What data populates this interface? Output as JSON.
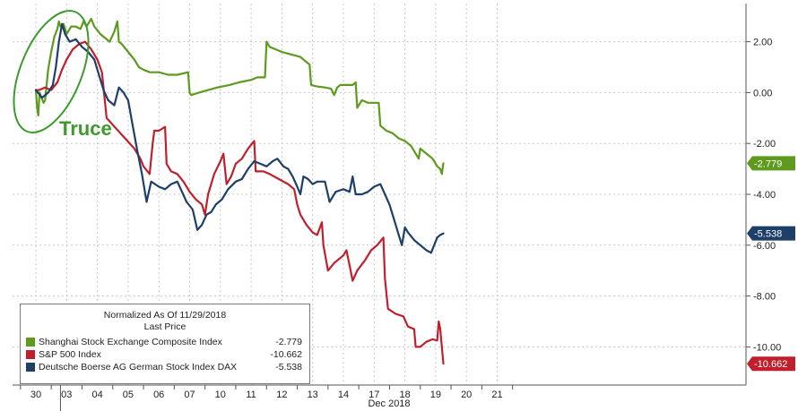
{
  "chart_data": {
    "type": "line",
    "xlabel": "Dec 2018",
    "x_categories": [
      "30",
      "03",
      "04",
      "05",
      "06",
      "07",
      "10",
      "11",
      "12",
      "13",
      "14",
      "17",
      "18",
      "19",
      "20",
      "21"
    ],
    "ylim": [
      -11.5,
      3.5
    ],
    "y_ticks": [
      2,
      0,
      -2,
      -4,
      -6,
      -8,
      -10
    ],
    "y_tick_labels": [
      "2.00",
      "0.00",
      "-2.00",
      "-4.00",
      "-6.00",
      "-8.00",
      "-10.00"
    ],
    "annotation": "Truce",
    "legend": {
      "header_line1": "Normalized As Of 11/29/2018",
      "header_line2": "Last Price"
    },
    "series": [
      {
        "name": "Shanghai Stock Exchange Composite Index",
        "color": "#5e9a1e",
        "last_value": -2.779,
        "last_label": "-2.779",
        "points": [
          [
            0,
            0.1
          ],
          [
            0.04,
            -0.6
          ],
          [
            0.08,
            -0.9
          ],
          [
            0.12,
            0.0
          ],
          [
            0.18,
            -0.2
          ],
          [
            0.25,
            -0.4
          ],
          [
            0.3,
            -0.3
          ],
          [
            0.4,
            0.9
          ],
          [
            0.5,
            1.6
          ],
          [
            0.6,
            2.2
          ],
          [
            0.7,
            2.5
          ],
          [
            0.75,
            2.8
          ],
          [
            0.8,
            2.6
          ],
          [
            0.9,
            2.7
          ],
          [
            1.0,
            2.3
          ],
          [
            1.15,
            2.6
          ],
          [
            1.3,
            2.6
          ],
          [
            1.45,
            2.5
          ],
          [
            1.55,
            2.8
          ],
          [
            1.65,
            2.6
          ],
          [
            1.8,
            2.9
          ],
          [
            1.9,
            2.6
          ],
          [
            2.1,
            2.3
          ],
          [
            2.4,
            2.0
          ],
          [
            2.55,
            2.4
          ],
          [
            2.65,
            2.8
          ],
          [
            2.7,
            2.0
          ],
          [
            2.8,
            1.9
          ],
          [
            3.0,
            1.6
          ],
          [
            3.2,
            1.3
          ],
          [
            3.35,
            1.0
          ],
          [
            3.5,
            0.9
          ],
          [
            3.7,
            0.8
          ],
          [
            4.0,
            0.8
          ],
          [
            4.3,
            0.7
          ],
          [
            4.6,
            0.7
          ],
          [
            4.95,
            0.8
          ],
          [
            5.0,
            0.0
          ],
          [
            5.05,
            -0.1
          ],
          [
            5.3,
            0.0
          ],
          [
            5.6,
            0.1
          ],
          [
            5.9,
            0.2
          ],
          [
            6.3,
            0.3
          ],
          [
            6.6,
            0.4
          ],
          [
            7.0,
            0.5
          ],
          [
            7.2,
            0.6
          ],
          [
            7.45,
            0.6
          ],
          [
            7.5,
            2.0
          ],
          [
            7.6,
            1.8
          ],
          [
            7.8,
            1.7
          ],
          [
            8.0,
            1.6
          ],
          [
            8.3,
            1.5
          ],
          [
            8.6,
            1.4
          ],
          [
            8.9,
            1.1
          ],
          [
            8.95,
            0.3
          ],
          [
            9.1,
            0.25
          ],
          [
            9.4,
            0.2
          ],
          [
            9.6,
            0.15
          ],
          [
            9.7,
            -0.1
          ],
          [
            9.8,
            0.2
          ],
          [
            9.9,
            0.3
          ],
          [
            10.1,
            0.3
          ],
          [
            10.3,
            0.3
          ],
          [
            10.4,
            0.4
          ],
          [
            10.45,
            -0.6
          ],
          [
            10.6,
            -0.3
          ],
          [
            10.8,
            -0.4
          ],
          [
            11.0,
            -0.4
          ],
          [
            11.15,
            -0.4
          ],
          [
            11.2,
            -1.3
          ],
          [
            11.4,
            -1.5
          ],
          [
            11.6,
            -1.6
          ],
          [
            11.8,
            -1.8
          ],
          [
            12.0,
            -1.9
          ],
          [
            12.2,
            -2.1
          ],
          [
            12.35,
            -2.4
          ],
          [
            12.45,
            -2.6
          ],
          [
            12.5,
            -2.2
          ],
          [
            12.7,
            -2.4
          ],
          [
            12.9,
            -2.6
          ],
          [
            13.05,
            -2.9
          ],
          [
            13.15,
            -3.0
          ],
          [
            13.2,
            -3.2
          ],
          [
            13.25,
            -2.779
          ]
        ]
      },
      {
        "name": "S&P 500 Index",
        "color": "#c0202e",
        "last_value": -10.662,
        "last_label": "-10.662",
        "points": [
          [
            0,
            0.1
          ],
          [
            0.1,
            0.1
          ],
          [
            0.3,
            0.2
          ],
          [
            0.5,
            0.1
          ],
          [
            0.7,
            0.4
          ],
          [
            0.85,
            0.9
          ],
          [
            1.0,
            1.3
          ],
          [
            1.2,
            1.7
          ],
          [
            1.4,
            1.9
          ],
          [
            1.6,
            2.0
          ],
          [
            1.8,
            1.7
          ],
          [
            2.0,
            1.3
          ],
          [
            2.15,
            0.8
          ],
          [
            2.3,
            -1.0
          ],
          [
            2.6,
            -1.4
          ],
          [
            2.9,
            -1.8
          ],
          [
            3.2,
            -2.2
          ],
          [
            3.4,
            -2.6
          ],
          [
            3.5,
            -2.9
          ],
          [
            3.7,
            -3.2
          ],
          [
            3.8,
            -2.0
          ],
          [
            3.85,
            -1.5
          ],
          [
            4.0,
            -1.5
          ],
          [
            4.2,
            -1.35
          ],
          [
            4.25,
            -2.8
          ],
          [
            4.4,
            -3.1
          ],
          [
            4.6,
            -3.2
          ],
          [
            4.8,
            -3.5
          ],
          [
            5.0,
            -3.9
          ],
          [
            5.2,
            -4.2
          ],
          [
            5.4,
            -4.4
          ],
          [
            5.5,
            -4.8
          ],
          [
            5.6,
            -4.0
          ],
          [
            5.8,
            -3.2
          ],
          [
            6.0,
            -2.7
          ],
          [
            6.1,
            -2.4
          ],
          [
            6.2,
            -3.6
          ],
          [
            6.35,
            -3.3
          ],
          [
            6.5,
            -2.8
          ],
          [
            6.7,
            -2.6
          ],
          [
            6.9,
            -2.2
          ],
          [
            7.1,
            -1.9
          ],
          [
            7.15,
            -3.1
          ],
          [
            7.4,
            -3.1
          ],
          [
            7.6,
            -3.2
          ],
          [
            7.75,
            -3.3
          ],
          [
            7.9,
            -3.4
          ],
          [
            8.2,
            -3.6
          ],
          [
            8.4,
            -3.8
          ],
          [
            8.5,
            -4.4
          ],
          [
            8.6,
            -4.8
          ],
          [
            8.8,
            -5.2
          ],
          [
            9.0,
            -5.5
          ],
          [
            9.15,
            -5.6
          ],
          [
            9.3,
            -5.1
          ],
          [
            9.35,
            -6.0
          ],
          [
            9.5,
            -7.0
          ],
          [
            9.7,
            -6.7
          ],
          [
            10.0,
            -6.4
          ],
          [
            10.1,
            -6.2
          ],
          [
            10.2,
            -6.8
          ],
          [
            10.3,
            -7.4
          ],
          [
            10.45,
            -7.0
          ],
          [
            10.7,
            -6.6
          ],
          [
            10.9,
            -6.2
          ],
          [
            11.1,
            -6.0
          ],
          [
            11.3,
            -5.7
          ],
          [
            11.35,
            -7.3
          ],
          [
            11.45,
            -8.5
          ],
          [
            11.7,
            -8.7
          ],
          [
            11.95,
            -8.8
          ],
          [
            12.1,
            -9.2
          ],
          [
            12.3,
            -9.3
          ],
          [
            12.35,
            -10.0
          ],
          [
            12.5,
            -10.0
          ],
          [
            12.7,
            -9.8
          ],
          [
            12.9,
            -9.7
          ],
          [
            13.05,
            -9.75
          ],
          [
            13.1,
            -9.0
          ],
          [
            13.15,
            -9.3
          ],
          [
            13.25,
            -10.662
          ]
        ]
      },
      {
        "name": "Deutsche Boerse AG German Stock Index DAX",
        "color": "#1d3f68",
        "last_value": -5.538,
        "last_label": "-5.538",
        "points": [
          [
            0,
            0.1
          ],
          [
            0.2,
            -0.2
          ],
          [
            0.4,
            0.0
          ],
          [
            0.55,
            0.3
          ],
          [
            0.65,
            1.0
          ],
          [
            0.75,
            2.0
          ],
          [
            0.85,
            2.7
          ],
          [
            0.95,
            2.3
          ],
          [
            1.1,
            2.0
          ],
          [
            1.3,
            2.1
          ],
          [
            1.5,
            1.8
          ],
          [
            1.7,
            1.6
          ],
          [
            1.9,
            1.3
          ],
          [
            2.0,
            0.9
          ],
          [
            2.2,
            0.1
          ],
          [
            2.35,
            -0.3
          ],
          [
            2.55,
            -0.5
          ],
          [
            2.7,
            0.2
          ],
          [
            2.85,
            0.0
          ],
          [
            3.0,
            -0.3
          ],
          [
            3.15,
            -1.3
          ],
          [
            3.3,
            -2.3
          ],
          [
            3.45,
            -3.2
          ],
          [
            3.6,
            -4.3
          ],
          [
            3.75,
            -3.5
          ],
          [
            4.0,
            -3.7
          ],
          [
            4.2,
            -3.8
          ],
          [
            4.4,
            -3.6
          ],
          [
            4.6,
            -3.5
          ],
          [
            4.9,
            -4.3
          ],
          [
            5.1,
            -4.6
          ],
          [
            5.25,
            -5.4
          ],
          [
            5.4,
            -5.2
          ],
          [
            5.55,
            -4.8
          ],
          [
            5.7,
            -4.7
          ],
          [
            5.85,
            -4.4
          ],
          [
            6.05,
            -4.2
          ],
          [
            6.25,
            -3.8
          ],
          [
            6.5,
            -3.5
          ],
          [
            6.7,
            -3.4
          ],
          [
            6.9,
            -3.0
          ],
          [
            7.1,
            -2.7
          ],
          [
            7.3,
            -2.8
          ],
          [
            7.5,
            -2.9
          ],
          [
            7.7,
            -2.7
          ],
          [
            7.85,
            -2.6
          ],
          [
            8.05,
            -2.9
          ],
          [
            8.2,
            -3.0
          ],
          [
            8.35,
            -3.3
          ],
          [
            8.5,
            -3.7
          ],
          [
            8.6,
            -4.0
          ],
          [
            8.7,
            -3.3
          ],
          [
            8.85,
            -3.4
          ],
          [
            9.0,
            -3.6
          ],
          [
            9.15,
            -3.5
          ],
          [
            9.4,
            -3.5
          ],
          [
            9.55,
            -4.3
          ],
          [
            9.75,
            -3.9
          ],
          [
            10.0,
            -3.8
          ],
          [
            10.2,
            -3.9
          ],
          [
            10.3,
            -3.3
          ],
          [
            10.4,
            -4.0
          ],
          [
            10.6,
            -4.0
          ],
          [
            10.8,
            -3.9
          ],
          [
            11.0,
            -3.7
          ],
          [
            11.2,
            -3.6
          ],
          [
            11.35,
            -4.0
          ],
          [
            11.5,
            -4.4
          ],
          [
            11.65,
            -5.0
          ],
          [
            11.8,
            -5.6
          ],
          [
            11.9,
            -6.0
          ],
          [
            12.0,
            -5.3
          ],
          [
            12.1,
            -5.5
          ],
          [
            12.3,
            -5.8
          ],
          [
            12.5,
            -6.0
          ],
          [
            12.7,
            -6.2
          ],
          [
            12.85,
            -6.3
          ],
          [
            12.95,
            -6.0
          ],
          [
            13.05,
            -5.7
          ],
          [
            13.15,
            -5.6
          ],
          [
            13.25,
            -5.538
          ]
        ]
      }
    ]
  }
}
